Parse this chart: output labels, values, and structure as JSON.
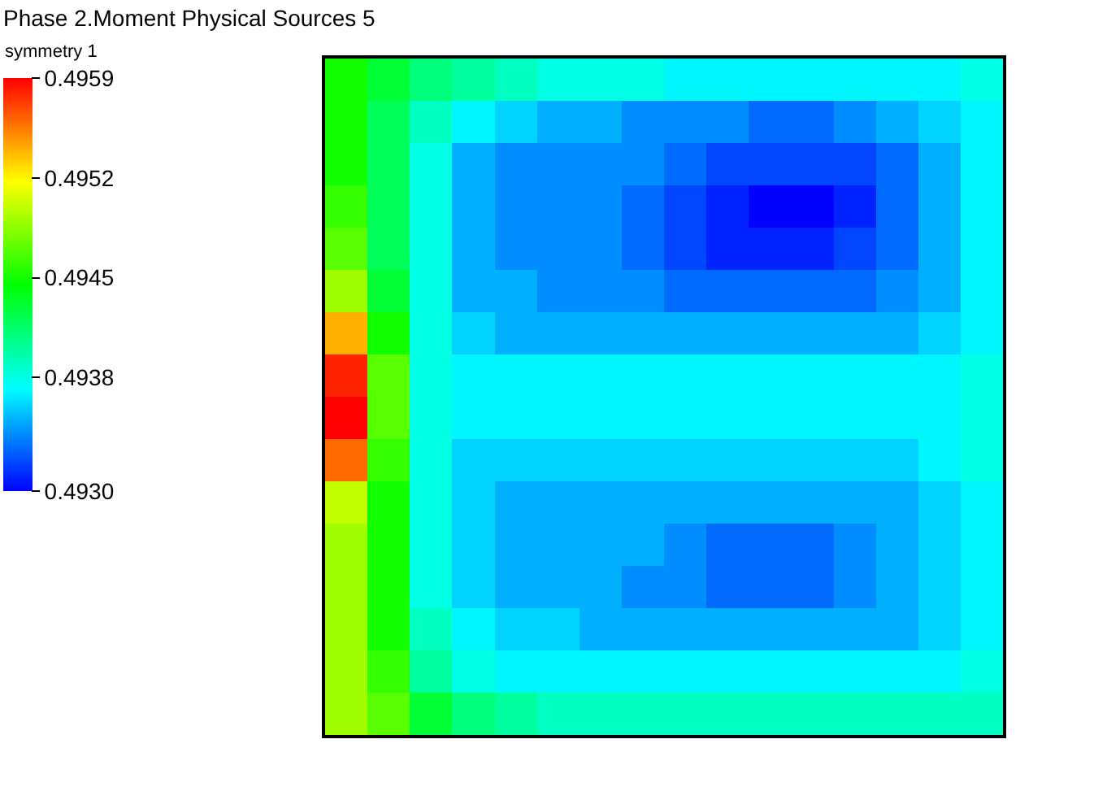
{
  "chart_data": {
    "type": "heatmap",
    "title": "Phase 2.Moment Physical Sources 5",
    "clabel": "symmetry 1",
    "categories": [
      null,
      null,
      null,
      null,
      null,
      null,
      null,
      null,
      null,
      null,
      null,
      null,
      null,
      null,
      null,
      null
    ],
    "y_categories": [
      null,
      null,
      null,
      null,
      null,
      null,
      null,
      null,
      null,
      null,
      null,
      null,
      null,
      null,
      null,
      null
    ],
    "clim": [
      0.493,
      0.4959
    ],
    "cticks": [
      {
        "value": 0.493,
        "label": "0.4930"
      },
      {
        "value": 0.4938,
        "label": "0.4938"
      },
      {
        "value": 0.4945,
        "label": "0.4945"
      },
      {
        "value": 0.4952,
        "label": "0.4952"
      },
      {
        "value": 0.4959,
        "label": "0.4959"
      }
    ],
    "cells": [
      [
        0.4945,
        0.4943,
        0.4941,
        0.494,
        0.4939,
        0.4938,
        0.4938,
        0.4938,
        0.4937,
        0.4937,
        0.4937,
        0.4937,
        0.4937,
        0.4937,
        0.4937,
        0.4938
      ],
      [
        0.4945,
        0.4942,
        0.4939,
        0.4937,
        0.4936,
        0.4935,
        0.4935,
        0.4934,
        0.4934,
        0.4934,
        0.4933,
        0.4933,
        0.4934,
        0.4935,
        0.4936,
        0.4937
      ],
      [
        0.4945,
        0.4942,
        0.4938,
        0.4935,
        0.4934,
        0.4934,
        0.4934,
        0.4934,
        0.4933,
        0.4932,
        0.4932,
        0.4932,
        0.4932,
        0.4933,
        0.4935,
        0.4937
      ],
      [
        0.4946,
        0.4942,
        0.4938,
        0.4935,
        0.4934,
        0.4934,
        0.4934,
        0.4933,
        0.4932,
        0.4931,
        0.493,
        0.493,
        0.4931,
        0.4933,
        0.4935,
        0.4937
      ],
      [
        0.4947,
        0.4942,
        0.4938,
        0.4935,
        0.4934,
        0.4934,
        0.4934,
        0.4933,
        0.4932,
        0.4931,
        0.4931,
        0.4931,
        0.4932,
        0.4933,
        0.4935,
        0.4937
      ],
      [
        0.4949,
        0.4943,
        0.4938,
        0.4935,
        0.4935,
        0.4934,
        0.4934,
        0.4934,
        0.4933,
        0.4933,
        0.4933,
        0.4933,
        0.4933,
        0.4934,
        0.4935,
        0.4937
      ],
      [
        0.4954,
        0.4945,
        0.4938,
        0.4936,
        0.4935,
        0.4935,
        0.4935,
        0.4935,
        0.4935,
        0.4935,
        0.4935,
        0.4935,
        0.4935,
        0.4935,
        0.4936,
        0.4937
      ],
      [
        0.4958,
        0.4947,
        0.4938,
        0.4937,
        0.4937,
        0.4937,
        0.4937,
        0.4937,
        0.4937,
        0.4937,
        0.4937,
        0.4937,
        0.4937,
        0.4937,
        0.4937,
        0.4938
      ],
      [
        0.4959,
        0.4947,
        0.4938,
        0.4937,
        0.4937,
        0.4937,
        0.4937,
        0.4937,
        0.4937,
        0.4937,
        0.4937,
        0.4937,
        0.4937,
        0.4937,
        0.4937,
        0.4938
      ],
      [
        0.4956,
        0.4946,
        0.4938,
        0.4936,
        0.4936,
        0.4936,
        0.4936,
        0.4936,
        0.4936,
        0.4936,
        0.4936,
        0.4936,
        0.4936,
        0.4936,
        0.4937,
        0.4938
      ],
      [
        0.495,
        0.4945,
        0.4938,
        0.4936,
        0.4935,
        0.4935,
        0.4935,
        0.4935,
        0.4935,
        0.4935,
        0.4935,
        0.4935,
        0.4935,
        0.4935,
        0.4936,
        0.4937
      ],
      [
        0.4949,
        0.4945,
        0.4938,
        0.4936,
        0.4935,
        0.4935,
        0.4935,
        0.4935,
        0.4934,
        0.4933,
        0.4933,
        0.4933,
        0.4934,
        0.4935,
        0.4936,
        0.4937
      ],
      [
        0.4949,
        0.4945,
        0.4938,
        0.4936,
        0.4935,
        0.4935,
        0.4935,
        0.4934,
        0.4934,
        0.4933,
        0.4933,
        0.4933,
        0.4934,
        0.4935,
        0.4936,
        0.4937
      ],
      [
        0.4949,
        0.4945,
        0.4939,
        0.4937,
        0.4936,
        0.4936,
        0.4935,
        0.4935,
        0.4935,
        0.4935,
        0.4935,
        0.4935,
        0.4935,
        0.4935,
        0.4936,
        0.4937
      ],
      [
        0.4949,
        0.4946,
        0.494,
        0.4938,
        0.4937,
        0.4937,
        0.4937,
        0.4937,
        0.4937,
        0.4937,
        0.4937,
        0.4937,
        0.4937,
        0.4937,
        0.4937,
        0.4938
      ],
      [
        0.4949,
        0.4947,
        0.4943,
        0.4941,
        0.494,
        0.4939,
        0.4939,
        0.4939,
        0.4939,
        0.4939,
        0.4939,
        0.4939,
        0.4939,
        0.4939,
        0.4939,
        0.4939
      ]
    ]
  }
}
